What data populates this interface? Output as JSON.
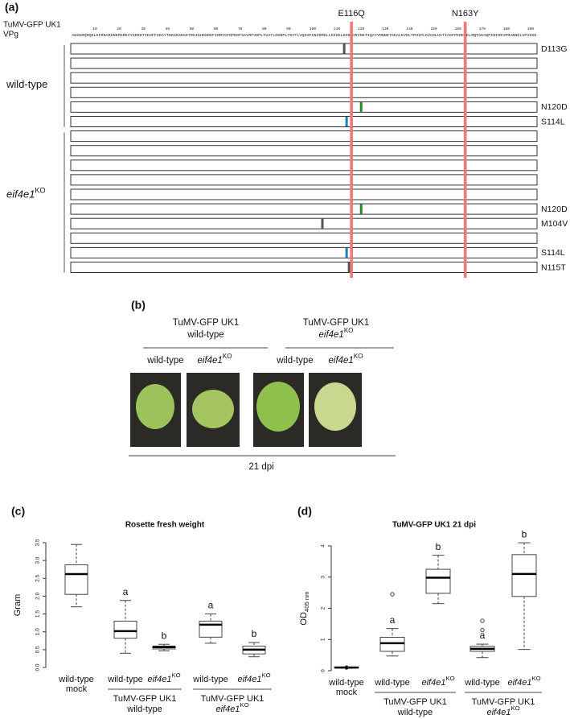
{
  "panel_a": {
    "label": "(a)",
    "virus": "TuMV-GFP UK1",
    "protein": "VPg",
    "sequence": "AKGKRQRQKLKFRNARDNKMGREVYGDDDTIEHFFGDAYTKKGKSKGKTRGIGHKNRKFINMYGFDPEDFSAVRFVDPLTGATLDDNPLTDITLVQEHFGNIRMDLLGEDELDSNEIRVNKTIQAYYMNNKTGKALKVDLTPHIPLKVCDLHATIAGFPERENELRQTGKAQPINIDEVPRANNELVPIDHE",
    "ruler": [
      10,
      20,
      30,
      40,
      50,
      60,
      70,
      80,
      90,
      100,
      110,
      120,
      130,
      140,
      150,
      160,
      170,
      180,
      190
    ],
    "highlights": [
      {
        "label": "E116Q",
        "position": 116,
        "color": "#f07878"
      },
      {
        "label": "N163Y",
        "position": 163,
        "color": "#f07878"
      }
    ],
    "groups": [
      {
        "name": "wild-type",
        "rows": [
          {
            "mutation": "D113G",
            "position": 113,
            "color": "#555555"
          },
          null,
          null,
          null,
          {
            "mutation": "N120D",
            "position": 120,
            "color": "#1d8a2e"
          },
          {
            "mutation": "S114L",
            "position": 114,
            "color": "#1f7fb5"
          }
        ]
      },
      {
        "name": "eif4e1",
        "superscript": "KO",
        "rows": [
          null,
          null,
          null,
          null,
          null,
          {
            "mutation": "N120D",
            "position": 120,
            "color": "#1d8a2e"
          },
          {
            "mutation": "M104V",
            "position": 104,
            "color": "#555555"
          },
          null,
          {
            "mutation": "S114L",
            "position": 114,
            "color": "#1f7fb5"
          },
          {
            "mutation": "N115T",
            "position": 115,
            "color": "#555555"
          }
        ]
      }
    ]
  },
  "panel_b": {
    "label": "(b)",
    "columns": [
      {
        "lines": [
          "TuMV-GFP UK1",
          "wild-type"
        ]
      },
      {
        "lines": [
          "TuMV-GFP UK1",
          "eif4e1"
        ],
        "superscript": "KO"
      }
    ],
    "hosts": [
      {
        "name": "wild-type"
      },
      {
        "name": "eif4e1",
        "superscript": "KO"
      }
    ],
    "time": "21 dpi"
  },
  "chart_data": [
    {
      "type": "box",
      "panel": "(c)",
      "title": "Rosette fresh weight",
      "ylabel": "Gram",
      "categories": [
        "wild-type",
        "wild-type",
        "eif4e1",
        "wild-type",
        "eif4e1"
      ],
      "category_superscripts": [
        null,
        null,
        "KO",
        null,
        "KO"
      ],
      "category_sublabels": [
        "mock",
        null,
        null,
        null,
        null
      ],
      "groups": [
        {
          "name": "TuMV-GFP UK1",
          "host": "wild-type"
        },
        {
          "name": "TuMV-GFP UK1",
          "host": "eif4e1",
          "host_superscript": "KO"
        }
      ],
      "ylim": [
        0,
        3.5
      ],
      "yticks": [
        {
          "value": 0,
          "label": "0.0"
        },
        0.5,
        {
          "value": 1,
          "label": "1.0"
        },
        1.5,
        {
          "value": 2,
          "label": "2.0"
        },
        2.5,
        {
          "value": 3,
          "label": "3.0"
        },
        3.5
      ],
      "boxes": [
        {
          "min": 1.7,
          "q1": 2.05,
          "median": 2.62,
          "q3": 2.88,
          "max": 3.45
        },
        {
          "min": 0.4,
          "q1": 0.82,
          "median": 1.02,
          "q3": 1.3,
          "max": 1.88,
          "letter": "a"
        },
        {
          "min": 0.47,
          "q1": 0.52,
          "median": 0.57,
          "q3": 0.6,
          "max": 0.65,
          "letter": "b"
        },
        {
          "min": 0.68,
          "q1": 0.85,
          "median": 1.2,
          "q3": 1.3,
          "max": 1.5,
          "letter": "a"
        },
        {
          "min": 0.3,
          "q1": 0.38,
          "median": 0.5,
          "q3": 0.6,
          "max": 0.7,
          "letter": "b"
        }
      ]
    },
    {
      "type": "box",
      "panel": "(d)",
      "title": "TuMV-GFP UK1 21 dpi",
      "ylabel": "OD",
      "ylabel_subscript": "405 nm",
      "categories": [
        "wild-type",
        "wild-type",
        "eif4e1",
        "wild-type",
        "eif4e1"
      ],
      "category_superscripts": [
        null,
        null,
        "KO",
        null,
        "KO"
      ],
      "category_sublabels": [
        "mock",
        null,
        null,
        null,
        null
      ],
      "groups": [
        {
          "name": "TuMV-GFP UK1",
          "host": "wild-type"
        },
        {
          "name": "TuMV-GFP UK1",
          "host": "eif4e1",
          "host_superscript": "KO"
        }
      ],
      "ylim": [
        0,
        4
      ],
      "yticks": [
        0,
        1,
        2,
        3,
        4
      ],
      "boxes": [
        {
          "min": 0.08,
          "q1": 0.1,
          "median": 0.1,
          "q3": 0.12,
          "max": 0.12,
          "outliers": [
            0.1
          ]
        },
        {
          "min": 0.47,
          "q1": 0.62,
          "median": 0.88,
          "q3": 1.07,
          "max": 1.35,
          "outliers": [
            2.45
          ],
          "letter": "a"
        },
        {
          "min": 2.15,
          "q1": 2.48,
          "median": 2.98,
          "q3": 3.25,
          "max": 3.7,
          "letter": "b"
        },
        {
          "min": 0.42,
          "q1": 0.62,
          "median": 0.7,
          "q3": 0.78,
          "max": 0.85,
          "outliers": [
            1.3,
            1.6
          ],
          "letter": "a"
        },
        {
          "min": 0.68,
          "q1": 2.38,
          "median": 3.1,
          "q3": 3.72,
          "max": 4.1,
          "letter": "b"
        }
      ]
    }
  ]
}
